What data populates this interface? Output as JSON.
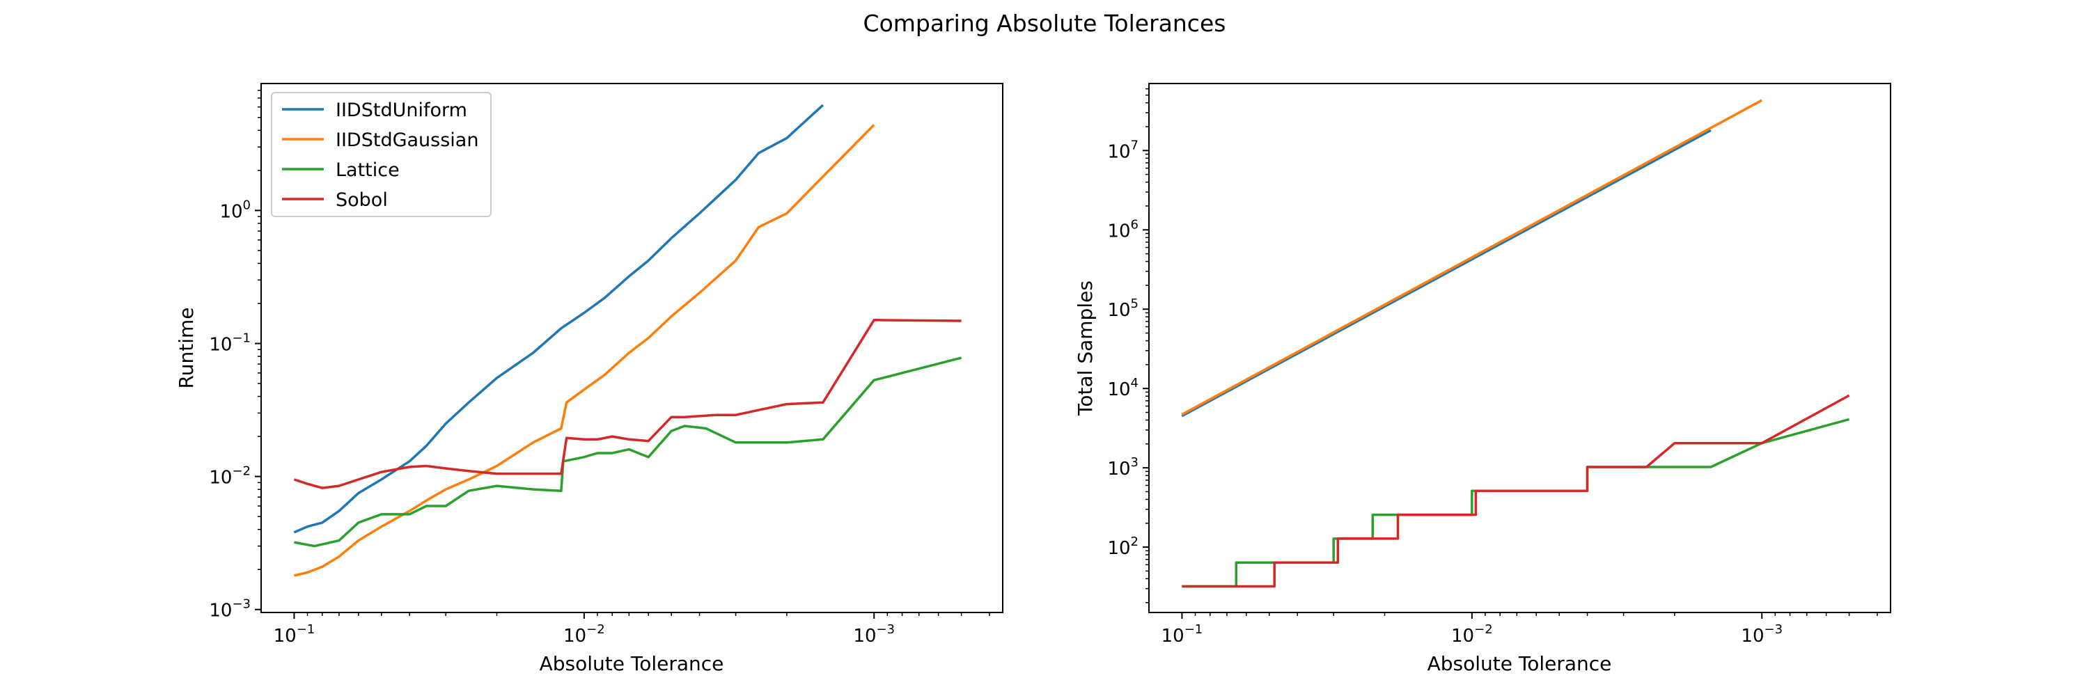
{
  "figure": {
    "title": "Comparing Absolute Tolerances"
  },
  "chart_data": [
    {
      "type": "line",
      "title": "",
      "xlabel": "Absolute Tolerance",
      "ylabel": "Runtime",
      "xscale": "log",
      "yscale": "log",
      "x_inverted": true,
      "xlim": [
        0.13,
        0.00036
      ],
      "ylim": [
        0.00095,
        9.0
      ],
      "xticks": [
        {
          "value": 0.1,
          "base": "10",
          "exp": "−1"
        },
        {
          "value": 0.01,
          "base": "10",
          "exp": "−2"
        },
        {
          "value": 0.001,
          "base": "10",
          "exp": "−3"
        }
      ],
      "yticks": [
        {
          "value": 0.001,
          "base": "10",
          "exp": "−3"
        },
        {
          "value": 0.01,
          "base": "10",
          "exp": "−2"
        },
        {
          "value": 0.1,
          "base": "10",
          "exp": "−1"
        },
        {
          "value": 1,
          "base": "10",
          "exp": "0"
        }
      ],
      "grid": false,
      "legend": "upper left",
      "series": [
        {
          "name": "IIDStdUniform",
          "color": "#1f77b4",
          "x": [
            0.1,
            0.09,
            0.08,
            0.07,
            0.06,
            0.05,
            0.04,
            0.035,
            0.03,
            0.025,
            0.02,
            0.015,
            0.012,
            0.01,
            0.0085,
            0.007,
            0.006,
            0.005,
            0.004,
            0.003,
            0.0025,
            0.002,
            0.0015
          ],
          "y": [
            0.0038,
            0.0042,
            0.0045,
            0.0055,
            0.0075,
            0.0095,
            0.013,
            0.017,
            0.025,
            0.036,
            0.055,
            0.085,
            0.13,
            0.17,
            0.22,
            0.32,
            0.42,
            0.62,
            0.95,
            1.7,
            2.7,
            3.5,
            6.2
          ]
        },
        {
          "name": "IIDStdGaussian",
          "color": "#ff7f0e",
          "x": [
            0.1,
            0.09,
            0.08,
            0.07,
            0.06,
            0.05,
            0.04,
            0.035,
            0.03,
            0.025,
            0.02,
            0.015,
            0.012,
            0.0115,
            0.01,
            0.0085,
            0.007,
            0.006,
            0.005,
            0.004,
            0.003,
            0.0025,
            0.002,
            0.0015,
            0.001
          ],
          "y": [
            0.0018,
            0.0019,
            0.0021,
            0.0025,
            0.0033,
            0.0042,
            0.0055,
            0.0066,
            0.008,
            0.0095,
            0.012,
            0.018,
            0.023,
            0.036,
            0.045,
            0.058,
            0.085,
            0.11,
            0.16,
            0.24,
            0.42,
            0.75,
            0.95,
            1.8,
            4.4
          ]
        },
        {
          "name": "Lattice",
          "color": "#2ca02c",
          "x": [
            0.1,
            0.085,
            0.07,
            0.06,
            0.05,
            0.04,
            0.035,
            0.03,
            0.025,
            0.02,
            0.015,
            0.012,
            0.0118,
            0.01,
            0.009,
            0.008,
            0.007,
            0.006,
            0.005,
            0.0045,
            0.0038,
            0.003,
            0.0025,
            0.002,
            0.0015,
            0.001,
            0.0005
          ],
          "y": [
            0.0032,
            0.003,
            0.0033,
            0.0045,
            0.0052,
            0.0052,
            0.006,
            0.006,
            0.0078,
            0.0085,
            0.008,
            0.0078,
            0.013,
            0.014,
            0.015,
            0.015,
            0.016,
            0.014,
            0.022,
            0.024,
            0.023,
            0.018,
            0.018,
            0.018,
            0.019,
            0.053,
            0.078
          ]
        },
        {
          "name": "Sobol",
          "color": "#d62728",
          "x": [
            0.1,
            0.09,
            0.08,
            0.07,
            0.06,
            0.05,
            0.04,
            0.035,
            0.03,
            0.025,
            0.02,
            0.015,
            0.012,
            0.0115,
            0.01,
            0.009,
            0.008,
            0.007,
            0.006,
            0.005,
            0.0045,
            0.0035,
            0.003,
            0.002,
            0.0015,
            0.001,
            0.0005
          ],
          "y": [
            0.0095,
            0.0088,
            0.0082,
            0.0085,
            0.0095,
            0.0108,
            0.0118,
            0.012,
            0.0115,
            0.011,
            0.0105,
            0.0105,
            0.0105,
            0.0195,
            0.019,
            0.019,
            0.02,
            0.019,
            0.0185,
            0.028,
            0.028,
            0.029,
            0.029,
            0.035,
            0.036,
            0.15,
            0.148
          ]
        }
      ]
    },
    {
      "type": "line",
      "title": "",
      "xlabel": "Absolute Tolerance",
      "ylabel": "Total Samples",
      "xscale": "log",
      "yscale": "log",
      "x_inverted": true,
      "xlim": [
        0.13,
        0.00036
      ],
      "ylim": [
        15,
        70000000
      ],
      "xticks": [
        {
          "value": 0.1,
          "base": "10",
          "exp": "−1"
        },
        {
          "value": 0.01,
          "base": "10",
          "exp": "−2"
        },
        {
          "value": 0.001,
          "base": "10",
          "exp": "−3"
        }
      ],
      "yticks": [
        {
          "value": 100,
          "base": "10",
          "exp": "2"
        },
        {
          "value": 1000,
          "base": "10",
          "exp": "3"
        },
        {
          "value": 10000,
          "base": "10",
          "exp": "4"
        },
        {
          "value": 100000,
          "base": "10",
          "exp": "5"
        },
        {
          "value": 1000000,
          "base": "10",
          "exp": "6"
        },
        {
          "value": 10000000,
          "base": "10",
          "exp": "7"
        }
      ],
      "grid": false,
      "series": [
        {
          "name": "IIDStdUniform",
          "color": "#1f77b4",
          "x": [
            0.1,
            0.0015
          ],
          "y": [
            4500,
            18000000
          ]
        },
        {
          "name": "IIDStdGaussian",
          "color": "#ff7f0e",
          "x": [
            0.1,
            0.001
          ],
          "y": [
            4700,
            43000000
          ]
        },
        {
          "name": "Lattice",
          "color": "#2ca02c",
          "x": [
            0.1,
            0.065,
            0.065,
            0.03,
            0.03,
            0.022,
            0.022,
            0.01,
            0.01,
            0.004,
            0.004,
            0.0015,
            0.001,
            0.0005
          ],
          "y": [
            32,
            32,
            64,
            64,
            128,
            128,
            256,
            256,
            512,
            512,
            1024,
            1024,
            2048,
            4096
          ]
        },
        {
          "name": "Sobol",
          "color": "#d62728",
          "x": [
            0.1,
            0.048,
            0.048,
            0.029,
            0.029,
            0.018,
            0.018,
            0.0097,
            0.0097,
            0.004,
            0.004,
            0.0025,
            0.002,
            0.001,
            0.0005
          ],
          "y": [
            32,
            32,
            64,
            64,
            128,
            128,
            256,
            256,
            512,
            512,
            1024,
            1024,
            2048,
            2048,
            8192
          ]
        }
      ]
    }
  ]
}
